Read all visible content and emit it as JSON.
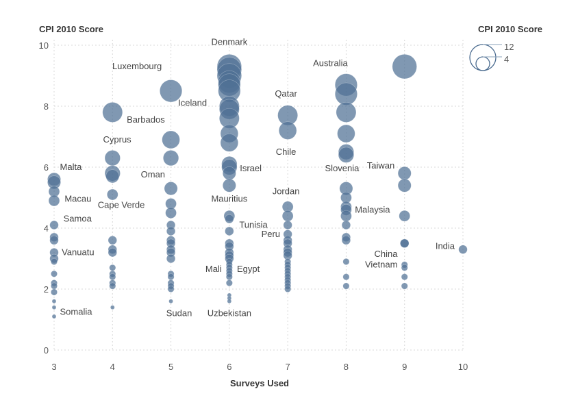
{
  "chart_data": {
    "type": "scatter",
    "title": "",
    "xlabel": "Surveys Used",
    "ylabel": "CPI 2010 Score",
    "xlim": [
      3,
      10
    ],
    "ylim": [
      0,
      10
    ],
    "xticks": [
      "3",
      "4",
      "5",
      "6",
      "7",
      "8",
      "9",
      "10"
    ],
    "yticks": [
      "0",
      "2",
      "4",
      "6",
      "8",
      "10"
    ],
    "grid": true,
    "size_legend": {
      "title": "CPI 2010 Score",
      "max_label": "12",
      "min_label": "4",
      "max_value": 12,
      "min_value": 4
    },
    "color": "#4f7094",
    "points": [
      {
        "x": 3,
        "y": 5.6,
        "s": 6
      },
      {
        "x": 3,
        "y": 5.5,
        "s": 6
      },
      {
        "x": 3,
        "y": 5.2,
        "s": 5
      },
      {
        "x": 3,
        "y": 4.9,
        "s": 5
      },
      {
        "x": 3,
        "y": 4.1,
        "s": 4
      },
      {
        "x": 3,
        "y": 3.7,
        "s": 4
      },
      {
        "x": 3,
        "y": 3.6,
        "s": 4
      },
      {
        "x": 3,
        "y": 3.2,
        "s": 4
      },
      {
        "x": 3,
        "y": 3.0,
        "s": 4
      },
      {
        "x": 3,
        "y": 2.9,
        "s": 3
      },
      {
        "x": 3,
        "y": 2.5,
        "s": 3
      },
      {
        "x": 3,
        "y": 2.2,
        "s": 3
      },
      {
        "x": 3,
        "y": 2.1,
        "s": 3
      },
      {
        "x": 3,
        "y": 1.9,
        "s": 3
      },
      {
        "x": 3,
        "y": 1.6,
        "s": 2
      },
      {
        "x": 3,
        "y": 1.4,
        "s": 2
      },
      {
        "x": 3,
        "y": 1.1,
        "s": 2
      },
      {
        "x": 4,
        "y": 7.8,
        "s": 9
      },
      {
        "x": 4,
        "y": 6.3,
        "s": 7
      },
      {
        "x": 4,
        "y": 5.8,
        "s": 7
      },
      {
        "x": 4,
        "y": 5.7,
        "s": 6
      },
      {
        "x": 4,
        "y": 5.1,
        "s": 5
      },
      {
        "x": 4,
        "y": 3.6,
        "s": 4
      },
      {
        "x": 4,
        "y": 3.3,
        "s": 4
      },
      {
        "x": 4,
        "y": 3.2,
        "s": 4
      },
      {
        "x": 4,
        "y": 2.7,
        "s": 3
      },
      {
        "x": 4,
        "y": 2.5,
        "s": 3
      },
      {
        "x": 4,
        "y": 2.4,
        "s": 3
      },
      {
        "x": 4,
        "y": 2.2,
        "s": 3
      },
      {
        "x": 4,
        "y": 2.1,
        "s": 3
      },
      {
        "x": 4,
        "y": 1.4,
        "s": 2
      },
      {
        "x": 5,
        "y": 8.5,
        "s": 10
      },
      {
        "x": 5,
        "y": 6.9,
        "s": 8
      },
      {
        "x": 5,
        "y": 6.3,
        "s": 7
      },
      {
        "x": 5,
        "y": 5.3,
        "s": 6
      },
      {
        "x": 5,
        "y": 4.8,
        "s": 5
      },
      {
        "x": 5,
        "y": 4.5,
        "s": 5
      },
      {
        "x": 5,
        "y": 4.1,
        "s": 4
      },
      {
        "x": 5,
        "y": 3.9,
        "s": 4
      },
      {
        "x": 5,
        "y": 3.6,
        "s": 4
      },
      {
        "x": 5,
        "y": 3.5,
        "s": 4
      },
      {
        "x": 5,
        "y": 3.3,
        "s": 4
      },
      {
        "x": 5,
        "y": 3.2,
        "s": 4
      },
      {
        "x": 5,
        "y": 3.0,
        "s": 4
      },
      {
        "x": 5,
        "y": 2.5,
        "s": 3
      },
      {
        "x": 5,
        "y": 2.4,
        "s": 3
      },
      {
        "x": 5,
        "y": 2.2,
        "s": 3
      },
      {
        "x": 5,
        "y": 2.1,
        "s": 3
      },
      {
        "x": 5,
        "y": 2.0,
        "s": 3
      },
      {
        "x": 5,
        "y": 1.6,
        "s": 2
      },
      {
        "x": 6,
        "y": 9.3,
        "s": 11
      },
      {
        "x": 6,
        "y": 9.2,
        "s": 11
      },
      {
        "x": 6,
        "y": 9.0,
        "s": 11
      },
      {
        "x": 6,
        "y": 8.8,
        "s": 10
      },
      {
        "x": 6,
        "y": 8.7,
        "s": 10
      },
      {
        "x": 6,
        "y": 8.5,
        "s": 10
      },
      {
        "x": 6,
        "y": 8.0,
        "s": 9
      },
      {
        "x": 6,
        "y": 7.9,
        "s": 9
      },
      {
        "x": 6,
        "y": 7.6,
        "s": 9
      },
      {
        "x": 6,
        "y": 7.1,
        "s": 8
      },
      {
        "x": 6,
        "y": 6.8,
        "s": 8
      },
      {
        "x": 6,
        "y": 6.1,
        "s": 7
      },
      {
        "x": 6,
        "y": 6.0,
        "s": 7
      },
      {
        "x": 6,
        "y": 5.8,
        "s": 6
      },
      {
        "x": 6,
        "y": 5.4,
        "s": 6
      },
      {
        "x": 6,
        "y": 4.4,
        "s": 5
      },
      {
        "x": 6,
        "y": 4.3,
        "s": 4
      },
      {
        "x": 6,
        "y": 3.9,
        "s": 4
      },
      {
        "x": 6,
        "y": 3.5,
        "s": 4
      },
      {
        "x": 6,
        "y": 3.4,
        "s": 4
      },
      {
        "x": 6,
        "y": 3.2,
        "s": 4
      },
      {
        "x": 6,
        "y": 3.1,
        "s": 4
      },
      {
        "x": 6,
        "y": 3.0,
        "s": 4
      },
      {
        "x": 6,
        "y": 2.9,
        "s": 3
      },
      {
        "x": 6,
        "y": 2.8,
        "s": 3
      },
      {
        "x": 6,
        "y": 2.7,
        "s": 3
      },
      {
        "x": 6,
        "y": 2.6,
        "s": 3
      },
      {
        "x": 6,
        "y": 2.5,
        "s": 3
      },
      {
        "x": 6,
        "y": 2.4,
        "s": 3
      },
      {
        "x": 6,
        "y": 2.2,
        "s": 3
      },
      {
        "x": 6,
        "y": 1.8,
        "s": 2
      },
      {
        "x": 6,
        "y": 1.7,
        "s": 2
      },
      {
        "x": 6,
        "y": 1.6,
        "s": 2
      },
      {
        "x": 7,
        "y": 7.7,
        "s": 9
      },
      {
        "x": 7,
        "y": 7.2,
        "s": 8
      },
      {
        "x": 7,
        "y": 4.7,
        "s": 5
      },
      {
        "x": 7,
        "y": 4.4,
        "s": 5
      },
      {
        "x": 7,
        "y": 4.1,
        "s": 4
      },
      {
        "x": 7,
        "y": 3.8,
        "s": 4
      },
      {
        "x": 7,
        "y": 3.6,
        "s": 4
      },
      {
        "x": 7,
        "y": 3.5,
        "s": 4
      },
      {
        "x": 7,
        "y": 3.3,
        "s": 4
      },
      {
        "x": 7,
        "y": 3.2,
        "s": 4
      },
      {
        "x": 7,
        "y": 3.1,
        "s": 4
      },
      {
        "x": 7,
        "y": 2.9,
        "s": 3
      },
      {
        "x": 7,
        "y": 2.8,
        "s": 3
      },
      {
        "x": 7,
        "y": 2.7,
        "s": 3
      },
      {
        "x": 7,
        "y": 2.6,
        "s": 3
      },
      {
        "x": 7,
        "y": 2.5,
        "s": 3
      },
      {
        "x": 7,
        "y": 2.4,
        "s": 3
      },
      {
        "x": 7,
        "y": 2.3,
        "s": 3
      },
      {
        "x": 7,
        "y": 2.2,
        "s": 3
      },
      {
        "x": 7,
        "y": 2.1,
        "s": 3
      },
      {
        "x": 7,
        "y": 2.0,
        "s": 3
      },
      {
        "x": 8,
        "y": 8.7,
        "s": 10
      },
      {
        "x": 8,
        "y": 8.4,
        "s": 10
      },
      {
        "x": 8,
        "y": 7.8,
        "s": 9
      },
      {
        "x": 8,
        "y": 7.1,
        "s": 8
      },
      {
        "x": 8,
        "y": 6.5,
        "s": 7
      },
      {
        "x": 8,
        "y": 6.4,
        "s": 7
      },
      {
        "x": 8,
        "y": 5.3,
        "s": 6
      },
      {
        "x": 8,
        "y": 5.0,
        "s": 5
      },
      {
        "x": 8,
        "y": 4.7,
        "s": 5
      },
      {
        "x": 8,
        "y": 4.6,
        "s": 5
      },
      {
        "x": 8,
        "y": 4.4,
        "s": 5
      },
      {
        "x": 8,
        "y": 4.1,
        "s": 4
      },
      {
        "x": 8,
        "y": 3.7,
        "s": 4
      },
      {
        "x": 8,
        "y": 3.6,
        "s": 4
      },
      {
        "x": 8,
        "y": 2.9,
        "s": 3
      },
      {
        "x": 8,
        "y": 2.4,
        "s": 3
      },
      {
        "x": 8,
        "y": 2.1,
        "s": 3
      },
      {
        "x": 9,
        "y": 9.3,
        "s": 11
      },
      {
        "x": 9,
        "y": 5.8,
        "s": 6
      },
      {
        "x": 9,
        "y": 5.4,
        "s": 6
      },
      {
        "x": 9,
        "y": 4.4,
        "s": 5
      },
      {
        "x": 9,
        "y": 3.5,
        "s": 4
      },
      {
        "x": 9,
        "y": 3.5,
        "s": 4
      },
      {
        "x": 9,
        "y": 2.8,
        "s": 3
      },
      {
        "x": 9,
        "y": 2.7,
        "s": 3
      },
      {
        "x": 9,
        "y": 2.4,
        "s": 3
      },
      {
        "x": 9,
        "y": 2.1,
        "s": 3
      },
      {
        "x": 10,
        "y": 3.3,
        "s": 4
      }
    ],
    "annotations": [
      {
        "text": "Denmark",
        "x": 6,
        "y": 10.1,
        "dx": 0,
        "dy": 0,
        "anchor": "middle"
      },
      {
        "text": "Luxembourg",
        "x": 4.42,
        "y": 9.3,
        "dx": 0,
        "dy": 0,
        "anchor": "middle"
      },
      {
        "text": "Iceland",
        "x": 5.37,
        "y": 8.1,
        "dx": 0,
        "dy": 0,
        "anchor": "middle"
      },
      {
        "text": "Barbados",
        "x": 4.57,
        "y": 7.55,
        "dx": 0,
        "dy": 0,
        "anchor": "middle"
      },
      {
        "text": "Cyprus",
        "x": 4.08,
        "y": 6.9,
        "dx": 0,
        "dy": 0,
        "anchor": "middle"
      },
      {
        "text": "Malta",
        "x": 3.1,
        "y": 6.0,
        "dx": 0,
        "dy": 0,
        "anchor": "start"
      },
      {
        "text": "Oman",
        "x": 4.9,
        "y": 5.75,
        "dx": 0,
        "dy": 0,
        "anchor": "end"
      },
      {
        "text": "Macau",
        "x": 3.18,
        "y": 4.95,
        "dx": 0,
        "dy": 0,
        "anchor": "start"
      },
      {
        "text": "Cape Verde",
        "x": 4.15,
        "y": 4.75,
        "dx": 0,
        "dy": 0,
        "anchor": "middle"
      },
      {
        "text": "Samoa",
        "x": 3.16,
        "y": 4.3,
        "dx": 0,
        "dy": 0,
        "anchor": "start"
      },
      {
        "text": "Vanuatu",
        "x": 3.13,
        "y": 3.2,
        "dx": 0,
        "dy": 0,
        "anchor": "start"
      },
      {
        "text": "Somalia",
        "x": 3.1,
        "y": 1.25,
        "dx": 0,
        "dy": 0,
        "anchor": "start"
      },
      {
        "text": "Sudan",
        "x": 5.14,
        "y": 1.2,
        "dx": 0,
        "dy": 0,
        "anchor": "middle"
      },
      {
        "text": "Uzbekistan",
        "x": 6.0,
        "y": 1.2,
        "dx": 0,
        "dy": 0,
        "anchor": "middle"
      },
      {
        "text": "Mauritius",
        "x": 6.0,
        "y": 4.95,
        "dx": 0,
        "dy": 0,
        "anchor": "middle"
      },
      {
        "text": "Israel",
        "x": 6.18,
        "y": 5.95,
        "dx": 0,
        "dy": 0,
        "anchor": "start"
      },
      {
        "text": "Tunisia",
        "x": 6.17,
        "y": 4.1,
        "dx": 0,
        "dy": 0,
        "anchor": "start"
      },
      {
        "text": "Peru",
        "x": 6.87,
        "y": 3.8,
        "dx": 0,
        "dy": 0,
        "anchor": "end"
      },
      {
        "text": "Mali",
        "x": 5.87,
        "y": 2.65,
        "dx": 0,
        "dy": 0,
        "anchor": "end"
      },
      {
        "text": "Egypt",
        "x": 6.13,
        "y": 2.65,
        "dx": 0,
        "dy": 0,
        "anchor": "start"
      },
      {
        "text": "Jordan",
        "x": 6.97,
        "y": 5.2,
        "dx": 0,
        "dy": 0,
        "anchor": "middle"
      },
      {
        "text": "Qatar",
        "x": 6.97,
        "y": 8.4,
        "dx": 0,
        "dy": 0,
        "anchor": "middle"
      },
      {
        "text": "Chile",
        "x": 6.97,
        "y": 6.5,
        "dx": 0,
        "dy": 0,
        "anchor": "middle"
      },
      {
        "text": "Australia",
        "x": 7.73,
        "y": 9.4,
        "dx": 0,
        "dy": 0,
        "anchor": "middle"
      },
      {
        "text": "Slovenia",
        "x": 7.93,
        "y": 5.95,
        "dx": 0,
        "dy": 0,
        "anchor": "middle"
      },
      {
        "text": "Taiwan",
        "x": 8.83,
        "y": 6.05,
        "dx": 0,
        "dy": 0,
        "anchor": "end"
      },
      {
        "text": "Malaysia",
        "x": 8.15,
        "y": 4.6,
        "dx": 0,
        "dy": 0,
        "anchor": "start"
      },
      {
        "text": "China",
        "x": 8.88,
        "y": 3.15,
        "dx": 0,
        "dy": 0,
        "anchor": "end"
      },
      {
        "text": "Vietnam",
        "x": 8.88,
        "y": 2.8,
        "dx": 0,
        "dy": 0,
        "anchor": "end"
      },
      {
        "text": "India",
        "x": 9.86,
        "y": 3.4,
        "dx": 0,
        "dy": 0,
        "anchor": "end"
      }
    ]
  }
}
